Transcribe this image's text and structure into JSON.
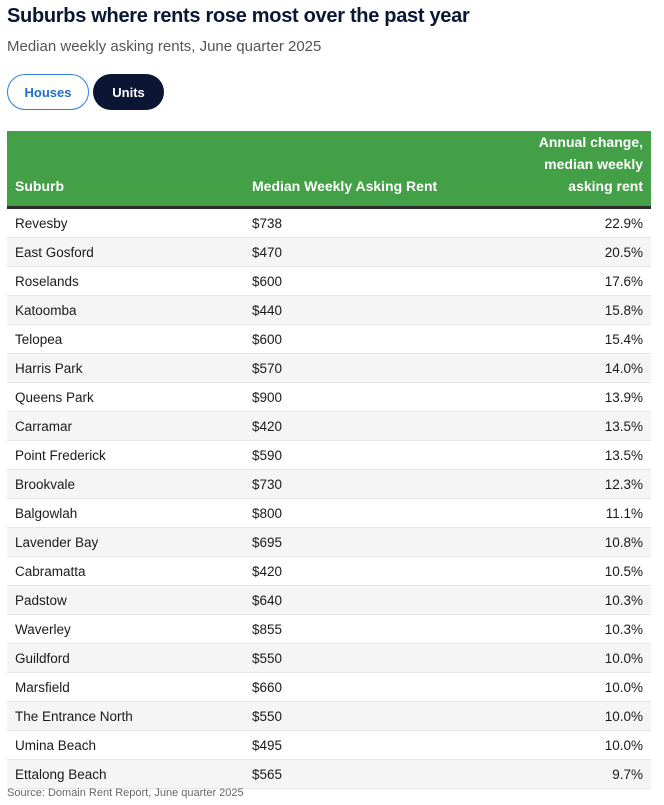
{
  "title": "Suburbs where rents rose most over the past year",
  "subtitle": "Median weekly asking rents, June quarter 2025",
  "tabs": [
    {
      "label": "Houses",
      "selected": false
    },
    {
      "label": "Units",
      "selected": true
    }
  ],
  "colors": {
    "header": "#43a047",
    "selected_tab": "#0b1634",
    "tab_outline": "#2f7fd6"
  },
  "table": {
    "headers": [
      "Suburb",
      "Median Weekly Asking Rent",
      "Annual change, median weekly asking rent"
    ],
    "rows": [
      [
        "Revesby",
        "$738",
        "22.9%"
      ],
      [
        "East Gosford",
        "$470",
        "20.5%"
      ],
      [
        "Roselands",
        "$600",
        "17.6%"
      ],
      [
        "Katoomba",
        "$440",
        "15.8%"
      ],
      [
        "Telopea",
        "$600",
        "15.4%"
      ],
      [
        "Harris Park",
        "$570",
        "14.0%"
      ],
      [
        "Queens Park",
        "$900",
        "13.9%"
      ],
      [
        "Carramar",
        "$420",
        "13.5%"
      ],
      [
        "Point Frederick",
        "$590",
        "13.5%"
      ],
      [
        "Brookvale",
        "$730",
        "12.3%"
      ],
      [
        "Balgowlah",
        "$800",
        "11.1%"
      ],
      [
        "Lavender Bay",
        "$695",
        "10.8%"
      ],
      [
        "Cabramatta",
        "$420",
        "10.5%"
      ],
      [
        "Padstow",
        "$640",
        "10.3%"
      ],
      [
        "Waverley",
        "$855",
        "10.3%"
      ],
      [
        "Guildford",
        "$550",
        "10.0%"
      ],
      [
        "Marsfield",
        "$660",
        "10.0%"
      ],
      [
        "The Entrance North",
        "$550",
        "10.0%"
      ],
      [
        "Umina Beach",
        "$495",
        "10.0%"
      ],
      [
        "Ettalong Beach",
        "$565",
        "9.7%"
      ]
    ]
  },
  "source": "Source: Domain Rent Report, June quarter 2025"
}
